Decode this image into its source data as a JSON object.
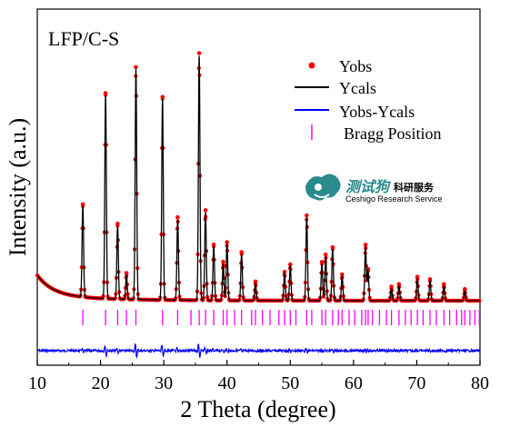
{
  "chart_data": {
    "type": "line",
    "panel_label": "LFP/C-S",
    "xlabel": "2 Theta (degree)",
    "ylabel": "Intensity (a.u.)",
    "xlim": [
      10,
      80
    ],
    "xticks": [
      10,
      20,
      30,
      40,
      50,
      60,
      70,
      80
    ],
    "grid": false,
    "legend_position": "top-right",
    "legend": [
      {
        "name": "Yobs",
        "marker": "dot",
        "color": "#ff0000"
      },
      {
        "name": "Ycals",
        "marker": "line",
        "color": "#000000"
      },
      {
        "name": "Yobs-Ycals",
        "marker": "line",
        "color": "#0000ff"
      },
      {
        "name": "Bragg Position",
        "marker": "tick",
        "color": "#ff00ff"
      }
    ],
    "peaks": [
      {
        "x": 17.2,
        "h": 0.37
      },
      {
        "x": 20.8,
        "h": 0.83
      },
      {
        "x": 22.7,
        "h": 0.3
      },
      {
        "x": 24.1,
        "h": 0.1
      },
      {
        "x": 25.6,
        "h": 0.94
      },
      {
        "x": 29.8,
        "h": 0.82
      },
      {
        "x": 32.2,
        "h": 0.33
      },
      {
        "x": 35.6,
        "h": 1.0
      },
      {
        "x": 36.6,
        "h": 0.36
      },
      {
        "x": 37.9,
        "h": 0.22
      },
      {
        "x": 39.4,
        "h": 0.15
      },
      {
        "x": 40.0,
        "h": 0.23
      },
      {
        "x": 42.3,
        "h": 0.19
      },
      {
        "x": 44.5,
        "h": 0.07
      },
      {
        "x": 49.1,
        "h": 0.11
      },
      {
        "x": 50.0,
        "h": 0.14
      },
      {
        "x": 52.6,
        "h": 0.34
      },
      {
        "x": 55.0,
        "h": 0.15
      },
      {
        "x": 55.6,
        "h": 0.18
      },
      {
        "x": 56.7,
        "h": 0.21
      },
      {
        "x": 58.2,
        "h": 0.1
      },
      {
        "x": 61.9,
        "h": 0.22
      },
      {
        "x": 62.3,
        "h": 0.12
      },
      {
        "x": 66.0,
        "h": 0.05
      },
      {
        "x": 67.2,
        "h": 0.06
      },
      {
        "x": 70.1,
        "h": 0.09
      },
      {
        "x": 72.1,
        "h": 0.08
      },
      {
        "x": 74.3,
        "h": 0.06
      },
      {
        "x": 77.6,
        "h": 0.04
      }
    ],
    "bragg_positions": [
      17.2,
      20.8,
      22.7,
      24.1,
      25.6,
      29.8,
      32.2,
      34.3,
      35.6,
      36.6,
      37.9,
      39.4,
      40.0,
      41.2,
      42.3,
      43.9,
      44.5,
      45.6,
      46.8,
      48.2,
      49.1,
      50.0,
      50.9,
      52.6,
      53.4,
      55.0,
      55.6,
      56.7,
      57.6,
      58.2,
      59.3,
      60.2,
      61.3,
      61.9,
      62.3,
      63.0,
      64.1,
      65.2,
      66.0,
      67.2,
      68.2,
      69.1,
      70.1,
      71.0,
      72.1,
      73.1,
      74.3,
      75.2,
      76.3,
      77.1,
      77.6,
      78.4,
      79.2,
      79.9
    ]
  },
  "watermark": {
    "brand_cn": "测试狗",
    "service_cn": "科研服务",
    "registered": "®",
    "brand_en": "Ceshigo Research Service",
    "color": "#2a8a8c"
  }
}
